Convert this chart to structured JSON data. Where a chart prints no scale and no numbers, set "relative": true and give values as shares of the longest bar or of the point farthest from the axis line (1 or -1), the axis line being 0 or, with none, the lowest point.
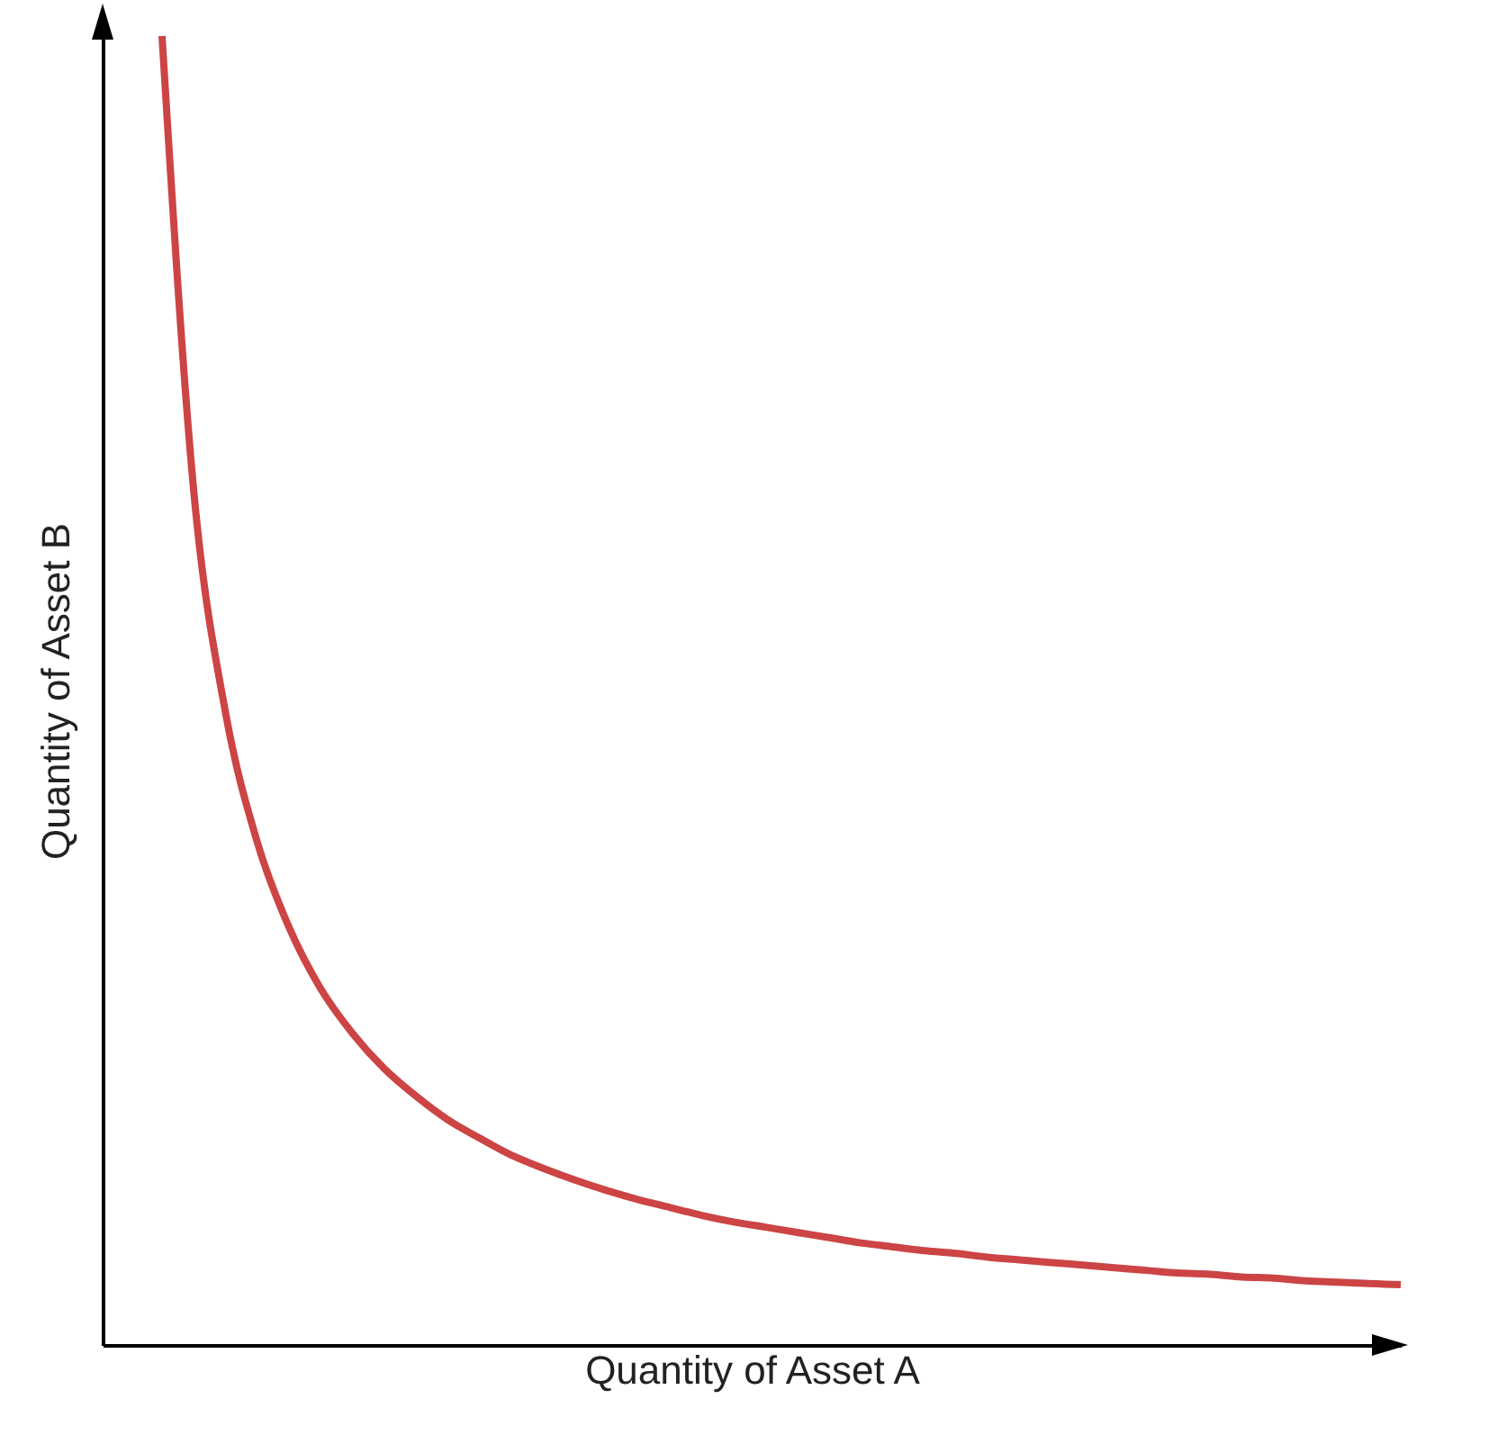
{
  "chart_data": {
    "type": "line",
    "relative": true,
    "xlabel": "Quantity of Asset A",
    "ylabel": "Quantity of Asset B",
    "categories": [
      null,
      null,
      null,
      null,
      null,
      null,
      null,
      null,
      null,
      null,
      null,
      null,
      null,
      null,
      null,
      null,
      null,
      null,
      null,
      null,
      null,
      null,
      null,
      null,
      null,
      null,
      null,
      null,
      null,
      null,
      null,
      null,
      null,
      null,
      null,
      null,
      null,
      null,
      null,
      null
    ],
    "series": [
      {
        "color": "#cc4444",
        "values": [
          1,
          0.652,
          0.483,
          0.384,
          0.319,
          0.272,
          0.238,
          0.211,
          0.19,
          0.172,
          0.158,
          0.145,
          0.135,
          0.126,
          0.118,
          0.111,
          0.105,
          0.099,
          0.094,
          0.09,
          0.086,
          0.082,
          0.078,
          0.075,
          0.072,
          0.07,
          0.067,
          0.065,
          0.063,
          0.061,
          0.059,
          0.057,
          0.055,
          0.054,
          0.052,
          0.051,
          0.049,
          0.048,
          0.047,
          0.046
        ]
      }
    ],
    "line_style": "solid"
  }
}
